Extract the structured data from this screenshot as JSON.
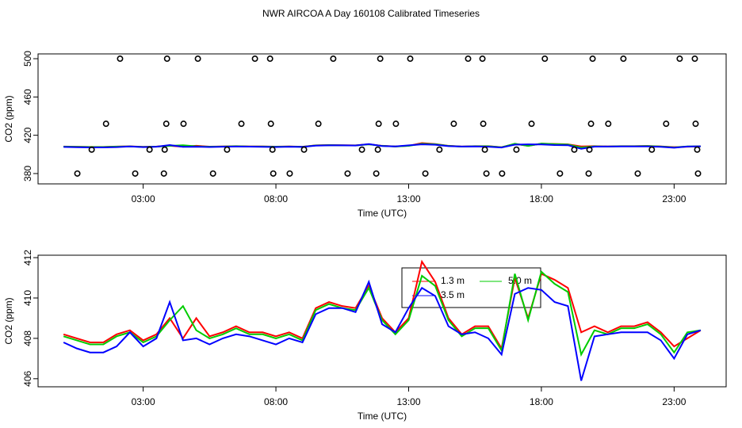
{
  "title": "NWR AIRCOA A  Day 160108  Calibrated Timeseries",
  "chart_data": [
    {
      "type": "scatter",
      "xlabel": "Time (UTC)",
      "ylabel": "CO2 (ppm)",
      "x": [
        2.13,
        3.9,
        5.06,
        7.21,
        7.78,
        10.16,
        11.93,
        13.06,
        15.24,
        15.78,
        18.13,
        19.93,
        21.09,
        23.21,
        23.78,
        1.6,
        3.87,
        4.52,
        6.7,
        7.81,
        9.6,
        11.87,
        12.52,
        14.7,
        15.81,
        17.63,
        19.87,
        20.52,
        22.7,
        23.81,
        1.06,
        3.24,
        3.81,
        6.16,
        7.87,
        9.06,
        11.24,
        11.84,
        14.16,
        15.87,
        17.06,
        19.24,
        19.81,
        22.16,
        23.87,
        0.52,
        2.7,
        3.78,
        5.63,
        7.9,
        8.52,
        10.7,
        11.78,
        13.63,
        15.93,
        16.52,
        18.7,
        19.78,
        21.63,
        23.9
      ],
      "values": [
        500,
        500,
        500,
        500,
        500,
        500,
        500,
        500,
        500,
        500,
        500,
        500,
        500,
        500,
        500,
        432,
        432,
        432,
        432,
        432,
        432,
        432,
        432,
        432,
        432,
        432,
        432,
        432,
        432,
        432,
        405,
        405,
        405,
        405,
        405,
        405,
        405,
        405,
        405,
        405,
        405,
        405,
        405,
        405,
        405,
        380,
        380,
        380,
        380,
        380,
        380,
        380,
        380,
        380,
        380,
        380,
        380,
        380,
        380,
        380
      ],
      "xlim": [
        -0.96,
        24.96
      ],
      "ylim": [
        369.2,
        505
      ],
      "xticks": [
        {
          "value": 3,
          "label": "03:00"
        },
        {
          "value": 8,
          "label": "08:00"
        },
        {
          "value": 13,
          "label": "13:00"
        },
        {
          "value": 18,
          "label": "18:00"
        },
        {
          "value": 23,
          "label": "23:00"
        }
      ],
      "yticks": [
        380,
        420,
        460,
        500
      ]
    },
    {
      "type": "line",
      "xlabel": "Time (UTC)",
      "ylabel": "CO2 (ppm)",
      "x": [
        0,
        0.5,
        1,
        1.5,
        2,
        2.5,
        3,
        3.5,
        4,
        4.5,
        5,
        5.5,
        6,
        6.5,
        7,
        7.5,
        8,
        8.5,
        9,
        9.5,
        10,
        10.5,
        11,
        11.5,
        12,
        12.5,
        13,
        13.5,
        14,
        14.5,
        15,
        15.5,
        16,
        16.5,
        17,
        17.5,
        18,
        18.5,
        19,
        19.5,
        20,
        20.5,
        21,
        21.5,
        22,
        22.5,
        23,
        23.5,
        24
      ],
      "series": [
        {
          "name": "1.3 m",
          "color": "#ff0000",
          "values": [
            408.2,
            408.0,
            407.8,
            407.8,
            408.2,
            408.4,
            407.9,
            408.2,
            409.0,
            408.0,
            409.0,
            408.1,
            408.3,
            408.6,
            408.3,
            408.3,
            408.1,
            408.3,
            408.0,
            409.5,
            409.8,
            409.6,
            409.5,
            410.6,
            409.0,
            408.3,
            409.0,
            411.8,
            410.8,
            409.0,
            408.2,
            408.6,
            408.6,
            407.5,
            411.0,
            409.0,
            411.2,
            410.9,
            410.5,
            408.3,
            408.6,
            408.3,
            408.6,
            408.6,
            408.8,
            408.3,
            407.6,
            408.0,
            408.4
          ]
        },
        {
          "name": "5.0 m",
          "color": "#00cc00",
          "values": [
            408.1,
            407.9,
            407.7,
            407.7,
            408.1,
            408.3,
            407.8,
            408.1,
            408.9,
            409.6,
            408.4,
            408.0,
            408.2,
            408.5,
            408.2,
            408.2,
            408.0,
            408.2,
            407.9,
            409.4,
            409.7,
            409.5,
            409.4,
            410.5,
            408.9,
            408.2,
            408.9,
            411.1,
            410.6,
            408.9,
            408.1,
            408.5,
            408.5,
            407.4,
            411.2,
            408.9,
            411.3,
            410.7,
            410.3,
            407.2,
            408.4,
            408.2,
            408.5,
            408.5,
            408.7,
            408.2,
            407.3,
            408.3,
            408.4
          ]
        },
        {
          "name": "3.5 m",
          "color": "#0000ff",
          "values": [
            407.8,
            407.5,
            407.3,
            407.3,
            407.6,
            408.3,
            407.6,
            408.0,
            409.8,
            407.9,
            408.0,
            407.7,
            408.0,
            408.2,
            408.1,
            407.9,
            407.7,
            408.0,
            407.8,
            409.2,
            409.5,
            409.5,
            409.3,
            410.8,
            408.7,
            408.3,
            409.5,
            410.5,
            410.1,
            408.6,
            408.2,
            408.3,
            408.0,
            407.2,
            410.2,
            410.5,
            410.4,
            409.8,
            409.6,
            405.9,
            408.1,
            408.2,
            408.3,
            408.3,
            408.3,
            407.9,
            407.0,
            408.2,
            408.4
          ]
        }
      ],
      "xlim": [
        -0.96,
        24.96
      ],
      "ylim": [
        405.6,
        412.12
      ],
      "xticks": [
        {
          "value": 3,
          "label": "03:00"
        },
        {
          "value": 8,
          "label": "08:00"
        },
        {
          "value": 13,
          "label": "13:00"
        },
        {
          "value": 18,
          "label": "18:00"
        },
        {
          "value": 23,
          "label": "23:00"
        }
      ],
      "yticks": [
        406,
        408,
        410,
        412
      ]
    }
  ]
}
